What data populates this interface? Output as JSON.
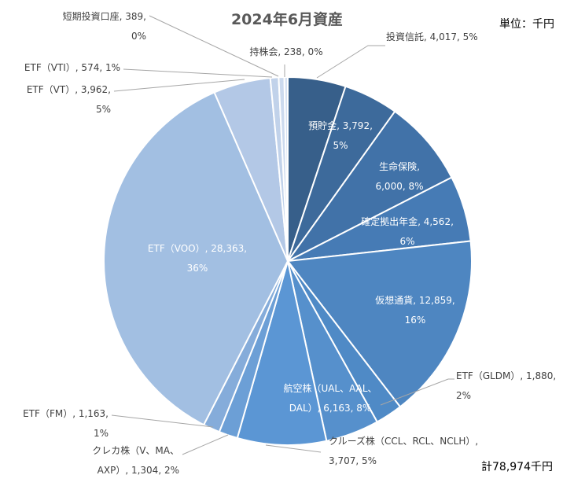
{
  "chart_data": {
    "type": "pie",
    "title": "2024年6月資産",
    "unit_label": "単位：千円",
    "total_label": "計78,974千円",
    "start_angle_deg": 0,
    "direction": "clockwise",
    "slices": [
      {
        "name": "投資信託",
        "value": 4017,
        "pct": "5%",
        "label_lines": [
          "投資信託, 4,017, 5%"
        ],
        "color": "#375f8a",
        "label_mode": "outside"
      },
      {
        "name": "預貯金",
        "value": 3792,
        "pct": "5%",
        "label_lines": [
          "預貯金, 3,792,",
          "5%"
        ],
        "color": "#3d6a9b",
        "label_mode": "inside"
      },
      {
        "name": "生命保険",
        "value": 6000,
        "pct": "8%",
        "label_lines": [
          "生命保険,",
          "6,000, 8%"
        ],
        "color": "#4172a8",
        "label_mode": "inside"
      },
      {
        "name": "確定拠出年金",
        "value": 4562,
        "pct": "6%",
        "label_lines": [
          "確定拠出年金, 4,562,",
          "6%"
        ],
        "color": "#467bb5",
        "label_mode": "inside"
      },
      {
        "name": "仮想通貨",
        "value": 12859,
        "pct": "16%",
        "label_lines": [
          "仮想通貨, 12,859,",
          "16%"
        ],
        "color": "#4e86c1",
        "label_mode": "inside"
      },
      {
        "name": "ETF（GLDM）",
        "value": 1880,
        "pct": "2%",
        "label_lines": [
          "ETF（GLDM）, 1,880,",
          "2%"
        ],
        "color": "#4f8ac6",
        "label_mode": "outside"
      },
      {
        "name": "クルーズ株（CCL、RCL、NCLH）",
        "value": 3707,
        "pct": "5%",
        "label_lines": [
          "クルーズ株（CCL、RCL、NCLH）,",
          "3,707, 5%"
        ],
        "color": "#5690cc",
        "label_mode": "outside"
      },
      {
        "name": "航空株（UAL、AAL、DAL）",
        "value": 6163,
        "pct": "8%",
        "label_lines": [
          "航空株（UAL、AAL、",
          "DAL）, 6,163, 8%"
        ],
        "color": "#5b96d4",
        "label_mode": "inside"
      },
      {
        "name": "クレカ株（V、MA、AXP）",
        "value": 1304,
        "pct": "2%",
        "label_lines": [
          "クレカ株（V、MA、",
          "AXP）, 1,304, 2%"
        ],
        "color": "#6c9fd6",
        "label_mode": "outside"
      },
      {
        "name": "ETF（FM）",
        "value": 1163,
        "pct": "1%",
        "label_lines": [
          "ETF（FM）, 1,163,",
          "1%"
        ],
        "color": "#85acda",
        "label_mode": "outside"
      },
      {
        "name": "ETF（VOO）",
        "value": 28363,
        "pct": "36%",
        "label_lines": [
          "ETF（VOO）, 28,363,",
          "36%"
        ],
        "color": "#a2bfe2",
        "label_mode": "inside"
      },
      {
        "name": "ETF（VT）",
        "value": 3962,
        "pct": "5%",
        "label_lines": [
          "ETF（VT）, 3,962,",
          "5%"
        ],
        "color": "#b3c8e6",
        "label_mode": "outside"
      },
      {
        "name": "ETF（VTI）",
        "value": 574,
        "pct": "1%",
        "label_lines": [
          "ETF（VTI）, 574, 1%"
        ],
        "color": "#c1d2ea",
        "label_mode": "outside"
      },
      {
        "name": "短期投資口座",
        "value": 389,
        "pct": "0%",
        "label_lines": [
          "短期投資口座, 389,",
          "0%"
        ],
        "color": "#ccdaee",
        "label_mode": "outside"
      },
      {
        "name": "持株会",
        "value": 238,
        "pct": "0%",
        "label_lines": [
          "持株会, 238, 0%"
        ],
        "color": "#d7e2f2",
        "label_mode": "outside"
      }
    ]
  }
}
